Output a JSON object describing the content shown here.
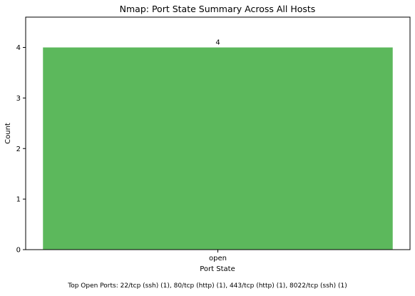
{
  "chart_data": {
    "type": "bar",
    "title": "Nmap: Port State Summary Across All Hosts",
    "xlabel": "Port State",
    "ylabel": "Count",
    "categories": [
      "open"
    ],
    "values": [
      4
    ],
    "data_labels": [
      "4"
    ],
    "ylim": [
      0,
      4.6
    ],
    "yticks": [
      0,
      1,
      2,
      3,
      4
    ],
    "grid": false,
    "bar_color": "#5cb85c"
  },
  "footer": {
    "text": "Top Open Ports: 22/tcp (ssh) (1), 80/tcp (http) (1), 443/tcp (http) (1), 8022/tcp (ssh) (1)"
  }
}
